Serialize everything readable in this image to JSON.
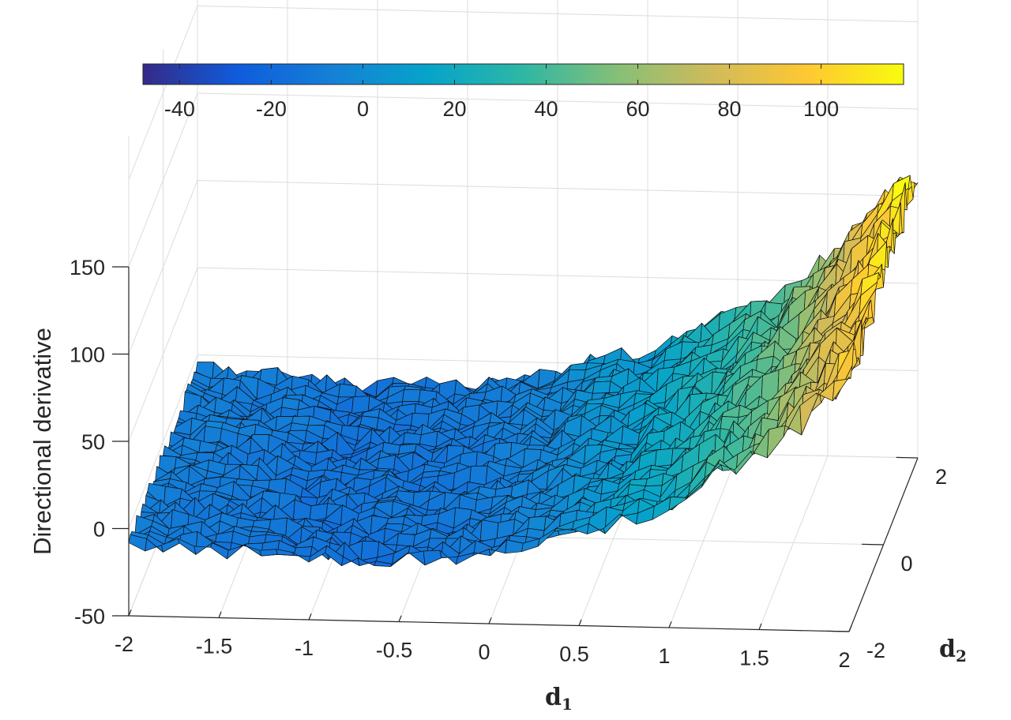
{
  "chart_data": {
    "type": "surface",
    "zlabel": "Directional derivative",
    "xlabel": {
      "main": "d",
      "sub": "1"
    },
    "ylabel": {
      "main": "d",
      "sub": "2"
    },
    "x_ticks": [
      "-2",
      "-1.5",
      "-1",
      "-0.5",
      "0",
      "0.5",
      "1",
      "1.5",
      "2"
    ],
    "y_ticks": [
      "-2",
      "0",
      "2"
    ],
    "z_ticks": [
      "-50",
      "0",
      "50",
      "100",
      "150"
    ],
    "xlim": [
      -2,
      2
    ],
    "ylim": [
      -2,
      2
    ],
    "zlim": [
      -50,
      150
    ],
    "grid": true,
    "colormap": "parula",
    "colorbar": {
      "location": "top",
      "range": [
        -48,
        118
      ],
      "ticks": [
        "-40",
        "-20",
        "0",
        "20",
        "40",
        "60",
        "80",
        "100"
      ],
      "colors": [
        "#352a87",
        "#0f5cdd",
        "#1481d6",
        "#06a4ca",
        "#2eb7a4",
        "#87bf77",
        "#d1bb59",
        "#fec832",
        "#f9fb0e"
      ]
    },
    "surface_profile": {
      "description_values_are_along_d1": true,
      "d1": [
        -2,
        -1.5,
        -1,
        -0.5,
        0,
        0.5,
        1,
        1.5,
        2
      ],
      "z_at_d2_minus2": [
        -10,
        -12,
        -15,
        -15,
        -10,
        2,
        20,
        50,
        95
      ],
      "z_at_d2_plus2": [
        -8,
        -10,
        -14,
        -12,
        -5,
        10,
        30,
        60,
        118
      ],
      "noise_amplitude": 6
    }
  }
}
